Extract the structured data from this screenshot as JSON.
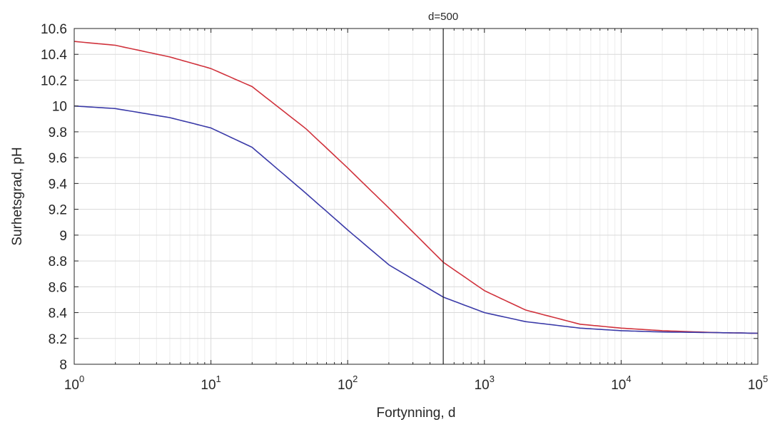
{
  "chart_data": {
    "type": "line",
    "xlabel": "Fortynning, d",
    "ylabel": "Surhetsgrad, pH",
    "xscale": "log",
    "xlim": [
      1,
      100000
    ],
    "ylim": [
      8,
      10.6
    ],
    "grid": "on",
    "x_ticks": [
      {
        "value": 1,
        "base": "10",
        "exp": "0"
      },
      {
        "value": 10,
        "base": "10",
        "exp": "1"
      },
      {
        "value": 100,
        "base": "10",
        "exp": "2"
      },
      {
        "value": 1000,
        "base": "10",
        "exp": "3"
      },
      {
        "value": 10000,
        "base": "10",
        "exp": "4"
      },
      {
        "value": 100000,
        "base": "10",
        "exp": "5"
      }
    ],
    "y_ticks": [
      "8",
      "8.2",
      "8.4",
      "8.6",
      "8.8",
      "9",
      "9.2",
      "9.4",
      "9.6",
      "9.8",
      "10",
      "10.2",
      "10.4",
      "10.6"
    ],
    "series": [
      {
        "color": "#d0323c",
        "x": [
          1,
          2,
          5,
          10,
          20,
          50,
          100,
          200,
          500,
          1000,
          2000,
          5000,
          10000,
          20000,
          50000,
          100000
        ],
        "y": [
          10.5,
          10.47,
          10.38,
          10.29,
          10.15,
          9.82,
          9.52,
          9.21,
          8.79,
          8.57,
          8.42,
          8.31,
          8.28,
          8.26,
          8.245,
          8.24
        ]
      },
      {
        "color": "#3a3aa8",
        "x": [
          1,
          2,
          5,
          10,
          20,
          50,
          100,
          200,
          500,
          1000,
          2000,
          5000,
          10000,
          20000,
          50000,
          100000
        ],
        "y": [
          10.0,
          9.98,
          9.91,
          9.83,
          9.68,
          9.32,
          9.04,
          8.77,
          8.52,
          8.4,
          8.33,
          8.28,
          8.26,
          8.25,
          8.245,
          8.24
        ]
      }
    ],
    "annotations": [
      {
        "x": 500,
        "label": "d=500",
        "color": "#222222"
      }
    ]
  }
}
